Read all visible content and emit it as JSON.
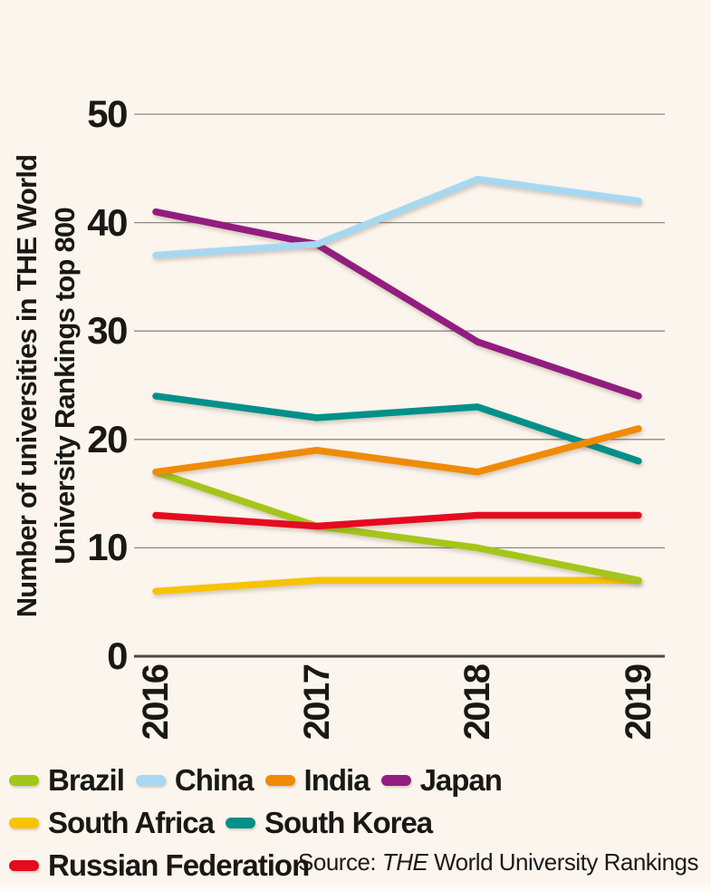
{
  "page": {
    "background": "#fbf5ed",
    "text_color": "#1a1814"
  },
  "chart_data": {
    "type": "line",
    "title": "",
    "ylabel": "Number of universities in THE World University Rankings top 800",
    "ylabel_lines": [
      "Number of universities in THE World",
      "University Rankings top 800"
    ],
    "xlabel": "",
    "x_categories": [
      "2016",
      "2017",
      "2018",
      "2019"
    ],
    "ylim": [
      0,
      50
    ],
    "y_ticks": [
      0,
      10,
      20,
      30,
      40,
      50
    ],
    "grid": "horizontal",
    "legend_position": "bottom",
    "series": [
      {
        "name": "Brazil",
        "color": "#a4c61a",
        "values": [
          17,
          12,
          10,
          7
        ]
      },
      {
        "name": "China",
        "color": "#a7d8f2",
        "values": [
          37,
          38,
          44,
          42
        ]
      },
      {
        "name": "India",
        "color": "#ef8b06",
        "values": [
          17,
          19,
          17,
          21
        ]
      },
      {
        "name": "Japan",
        "color": "#921d80",
        "values": [
          41,
          38,
          29,
          24
        ]
      },
      {
        "name": "South Africa",
        "color": "#f6c404",
        "values": [
          6,
          7,
          7,
          7
        ]
      },
      {
        "name": "South Korea",
        "color": "#00908a",
        "values": [
          24,
          22,
          23,
          18
        ]
      },
      {
        "name": "Russian Federation",
        "color": "#e40b1f",
        "values": [
          13,
          12,
          13,
          13
        ]
      }
    ],
    "draw_order": [
      "South Korea",
      "South Africa",
      "Brazil",
      "Japan",
      "India",
      "China",
      "Russian Federation"
    ],
    "axis_colors": {
      "gridline": "#8d8883",
      "axis_line": "#4c4843",
      "tick_label": "#1a1814"
    }
  },
  "source": {
    "prefix": "Source: ",
    "publication": "THE",
    "rest": " World University Rankings"
  }
}
